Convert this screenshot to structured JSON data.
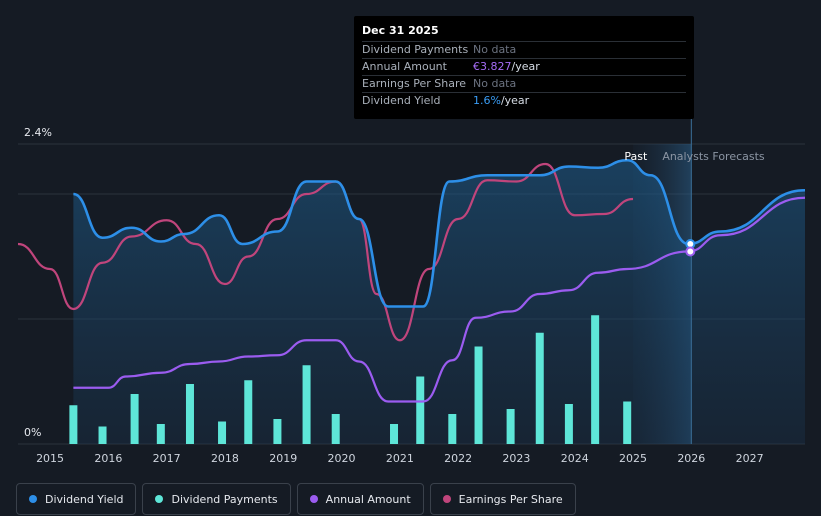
{
  "tooltip": {
    "date": "Dec 31 2025",
    "rows": [
      {
        "label": "Dividend Payments",
        "value": "No data",
        "highlight": "",
        "unit": ""
      },
      {
        "label": "Annual Amount",
        "value": "",
        "highlight": "€3.827",
        "unit": "/year"
      },
      {
        "label": "Earnings Per Share",
        "value": "No data",
        "highlight": "",
        "unit": ""
      },
      {
        "label": "Dividend Yield",
        "value": "",
        "highlight": "1.6%",
        "unit": "/year"
      }
    ]
  },
  "legend": [
    {
      "label": "Dividend Yield",
      "color": "#2d8fe8"
    },
    {
      "label": "Dividend Payments",
      "color": "#5ee6d8"
    },
    {
      "label": "Annual Amount",
      "color": "#9b5cf0"
    },
    {
      "label": "Earnings Per Share",
      "color": "#c0457c"
    }
  ],
  "chart_data": {
    "type": "line",
    "y_axis_labels": [
      "2.4%",
      "0%"
    ],
    "ylim": [
      0,
      2.4
    ],
    "xlim": [
      2014.45,
      2027.95
    ],
    "x_ticks": [
      "2015",
      "2016",
      "2017",
      "2018",
      "2019",
      "2020",
      "2021",
      "2022",
      "2023",
      "2024",
      "2025",
      "2026",
      "2027"
    ],
    "zones": {
      "past": "Past",
      "forecast": "Analysts Forecasts",
      "divider_year": 2026
    },
    "series": [
      {
        "name": "Dividend Yield",
        "unit": "%",
        "color": "#2d8fe8",
        "points": [
          [
            2015.4,
            2.0
          ],
          [
            2015.9,
            1.65
          ],
          [
            2016.4,
            1.73
          ],
          [
            2016.9,
            1.62
          ],
          [
            2017.3,
            1.68
          ],
          [
            2017.9,
            1.83
          ],
          [
            2018.3,
            1.6
          ],
          [
            2018.9,
            1.7
          ],
          [
            2019.4,
            2.1
          ],
          [
            2019.9,
            2.1
          ],
          [
            2020.3,
            1.8
          ],
          [
            2020.8,
            1.1
          ],
          [
            2021.4,
            1.1
          ],
          [
            2021.85,
            2.1
          ],
          [
            2022.5,
            2.15
          ],
          [
            2023.4,
            2.15
          ],
          [
            2023.9,
            2.22
          ],
          [
            2024.4,
            2.21
          ],
          [
            2024.9,
            2.27
          ],
          [
            2025.3,
            2.15
          ],
          [
            2025.95,
            1.6
          ],
          [
            2026.5,
            1.7
          ],
          [
            2027.95,
            2.03
          ]
        ]
      },
      {
        "name": "Earnings Per Share",
        "unit": "",
        "color": "#c0457c",
        "points": [
          [
            2014.45,
            1.6
          ],
          [
            2015.0,
            1.4
          ],
          [
            2015.4,
            1.08
          ],
          [
            2015.9,
            1.45
          ],
          [
            2016.4,
            1.66
          ],
          [
            2017.0,
            1.79
          ],
          [
            2017.5,
            1.6
          ],
          [
            2018.0,
            1.28
          ],
          [
            2018.4,
            1.5
          ],
          [
            2018.9,
            1.8
          ],
          [
            2019.4,
            2.0
          ],
          [
            2019.9,
            2.1
          ],
          [
            2020.3,
            1.8
          ],
          [
            2020.6,
            1.2
          ],
          [
            2021.0,
            0.83
          ],
          [
            2021.5,
            1.4
          ],
          [
            2022.0,
            1.8
          ],
          [
            2022.5,
            2.11
          ],
          [
            2023.0,
            2.1
          ],
          [
            2023.5,
            2.24
          ],
          [
            2024.0,
            1.83
          ],
          [
            2024.5,
            1.84
          ],
          [
            2025.0,
            1.96
          ]
        ]
      },
      {
        "name": "Annual Amount",
        "unit": "€",
        "color": "#9b5cf0",
        "points": [
          [
            2015.4,
            0.45
          ],
          [
            2016.0,
            0.45
          ],
          [
            2016.3,
            0.54
          ],
          [
            2016.9,
            0.57
          ],
          [
            2017.4,
            0.64
          ],
          [
            2017.9,
            0.66
          ],
          [
            2018.4,
            0.7
          ],
          [
            2018.9,
            0.71
          ],
          [
            2019.4,
            0.83
          ],
          [
            2019.9,
            0.83
          ],
          [
            2020.3,
            0.66
          ],
          [
            2020.8,
            0.34
          ],
          [
            2021.4,
            0.34
          ],
          [
            2021.9,
            0.67
          ],
          [
            2022.3,
            1.01
          ],
          [
            2022.9,
            1.06
          ],
          [
            2023.4,
            1.2
          ],
          [
            2023.9,
            1.23
          ],
          [
            2024.4,
            1.37
          ],
          [
            2024.9,
            1.4
          ],
          [
            2025.95,
            1.54
          ],
          [
            2026.5,
            1.67
          ],
          [
            2027.95,
            1.97
          ]
        ]
      },
      {
        "name": "Dividend Payments",
        "unit": "",
        "color": "#5ee6d8",
        "style": "bar",
        "points": [
          [
            2015.4,
            0.31
          ],
          [
            2015.9,
            0.14
          ],
          [
            2016.45,
            0.4
          ],
          [
            2016.9,
            0.16
          ],
          [
            2017.4,
            0.48
          ],
          [
            2017.95,
            0.18
          ],
          [
            2018.4,
            0.51
          ],
          [
            2018.9,
            0.2
          ],
          [
            2019.4,
            0.63
          ],
          [
            2019.9,
            0.24
          ],
          [
            2020.9,
            0.16
          ],
          [
            2021.35,
            0.54
          ],
          [
            2021.9,
            0.24
          ],
          [
            2022.35,
            0.78
          ],
          [
            2022.9,
            0.28
          ],
          [
            2023.4,
            0.89
          ],
          [
            2023.9,
            0.32
          ],
          [
            2024.35,
            1.03
          ],
          [
            2024.9,
            0.34
          ]
        ]
      }
    ]
  }
}
